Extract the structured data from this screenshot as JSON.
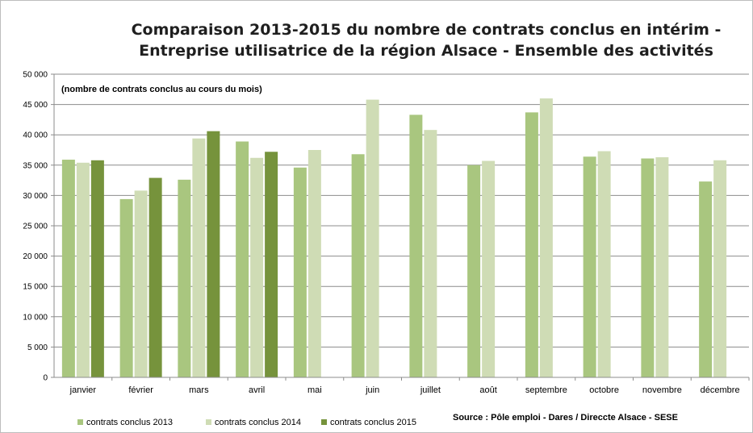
{
  "chart_data": {
    "type": "bar",
    "title": "Comparaison 2013-2015 du nombre de contrats conclus en intérim - Entreprise utilisatrice de la région Alsace - Ensemble des activités",
    "title_lines": [
      "Comparaison 2013-2015 du nombre de contrats conclus en intérim -",
      "Entreprise utilisatrice de la région Alsace - Ensemble des activités"
    ],
    "note": "(nombre de contrats conclus au cours du mois)",
    "source": "Source : Pôle emploi - Dares / Direccte Alsace - SESE",
    "xlabel": "",
    "ylabel": "",
    "ylim": [
      0,
      50000
    ],
    "grid": true,
    "legend_position": "bottom-left",
    "y_ticks": [
      "0",
      "5 000",
      "10 000",
      "15 000",
      "20 000",
      "25 000",
      "30 000",
      "35 000",
      "40 000",
      "45 000",
      "50 000"
    ],
    "categories": [
      "janvier",
      "février",
      "mars",
      "avril",
      "mai",
      "juin",
      "juillet",
      "août",
      "septembre",
      "octobre",
      "novembre",
      "décembre"
    ],
    "series": [
      {
        "name": "contrats conclus 2013",
        "color": "#a9c67f",
        "values": [
          35900,
          29400,
          32600,
          38900,
          34600,
          36800,
          43300,
          35000,
          43700,
          36400,
          36100,
          32300
        ]
      },
      {
        "name": "contrats conclus 2014",
        "color": "#cfdcb5",
        "values": [
          35400,
          30800,
          39400,
          36200,
          37500,
          45800,
          40800,
          35700,
          46000,
          37300,
          36300,
          35800
        ]
      },
      {
        "name": "contrats conclus 2015",
        "color": "#76933c",
        "values": [
          35800,
          32900,
          40600,
          37200,
          null,
          null,
          null,
          null,
          null,
          null,
          null,
          null
        ]
      }
    ]
  }
}
